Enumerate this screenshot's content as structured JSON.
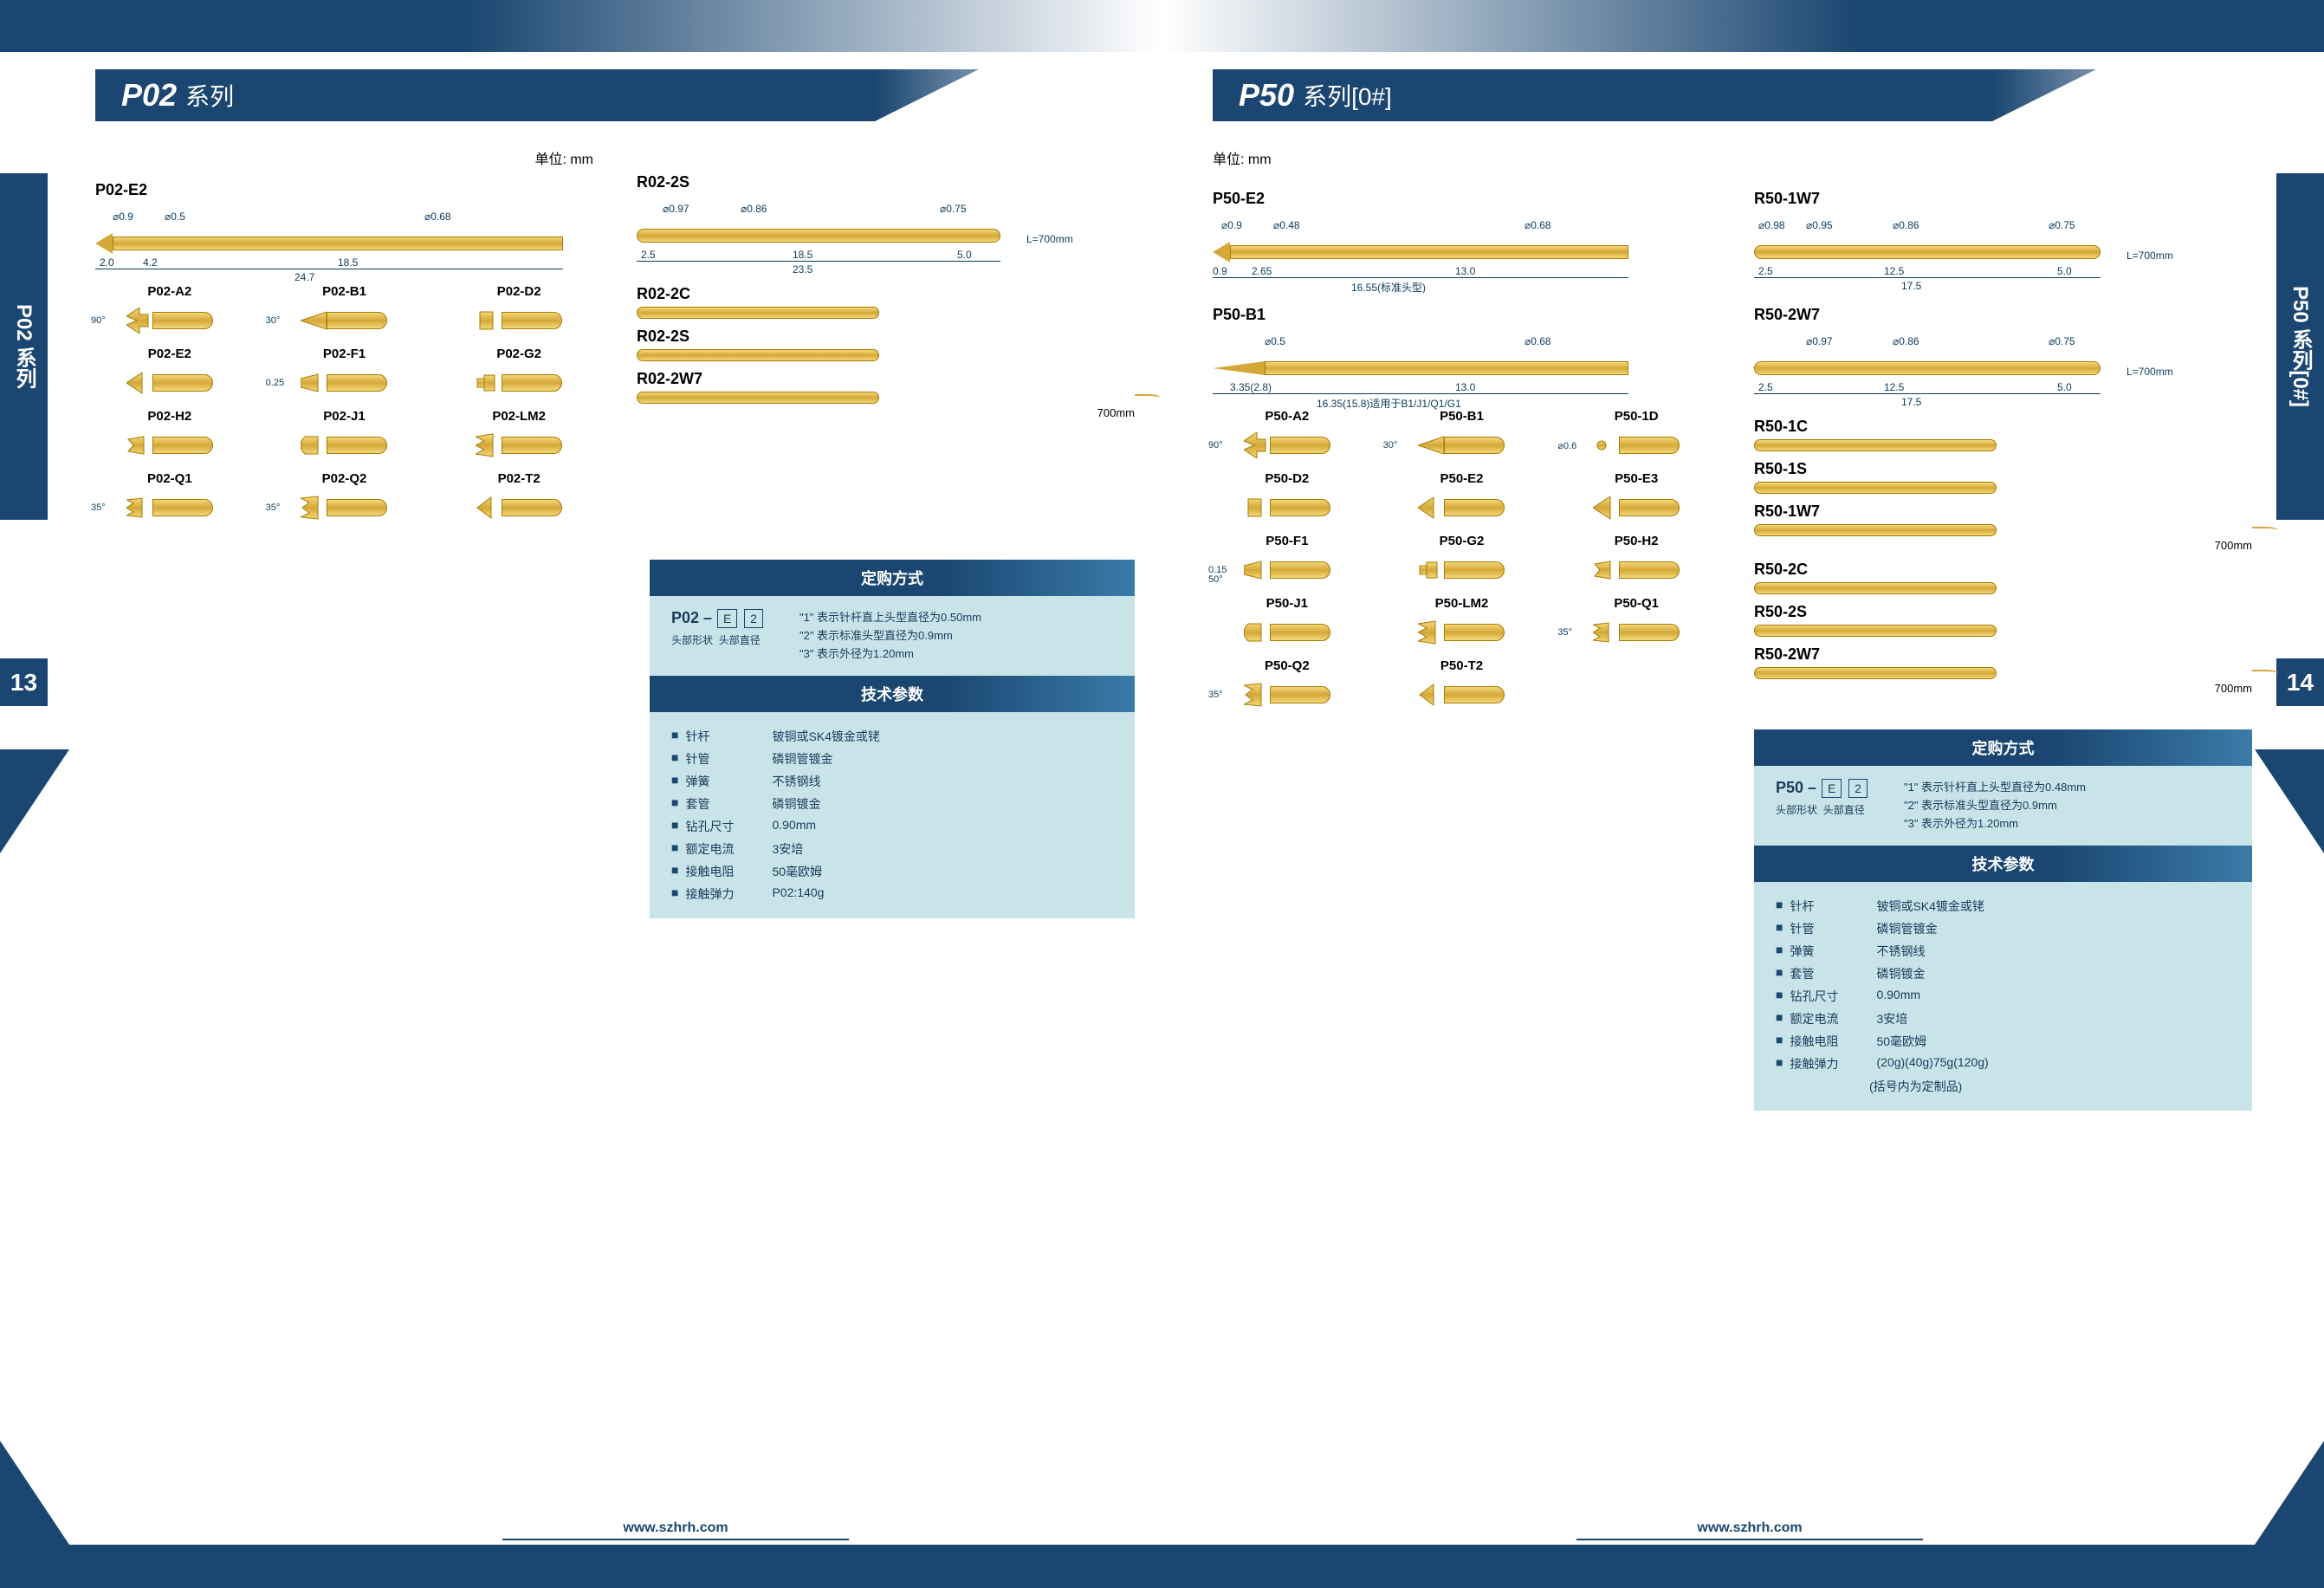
{
  "colors": {
    "brand_blue": "#1a4671",
    "panel_bg": "#c9e4e8",
    "pin_gold_light": "#f5d77a",
    "pin_gold_dark": "#d4a838",
    "pin_border": "#a67c00",
    "dim_color": "#0a3a5c"
  },
  "typography": {
    "title_size": 36,
    "label_size": 18,
    "dim_size": 12,
    "spec_size": 14
  },
  "footer_url": "www.szhrh.com",
  "unit_label": "单位:  mm",
  "page_left": {
    "number": "13",
    "side_tab": "P02 系列",
    "title_main": "P02",
    "title_sub": "系列",
    "main_pin": {
      "label": "P02-E2",
      "dims_top": [
        "⌀0.9",
        "⌀0.5",
        "⌀0.68"
      ],
      "dims_bottom": [
        "2.0",
        "4.2",
        "18.5"
      ],
      "total": "24.7"
    },
    "sleeve_main": {
      "label": "R02-2S",
      "dims_top": [
        "⌀0.97",
        "⌀0.86",
        "⌀0.75"
      ],
      "dims_bottom": [
        "2.5",
        "18.5",
        "5.0"
      ],
      "total": "23.5",
      "wire": "L=700mm"
    },
    "tips": [
      {
        "label": "P02-A2",
        "angle": "90°",
        "type": "vcut"
      },
      {
        "label": "P02-B1",
        "angle": "30°",
        "type": "point"
      },
      {
        "label": "P02-D2",
        "type": "flat"
      },
      {
        "label": "P02-E2",
        "type": "cone"
      },
      {
        "label": "P02-F1",
        "angle": "0.25",
        "type": "chisel"
      },
      {
        "label": "P02-G2",
        "type": "step"
      },
      {
        "label": "P02-H2",
        "type": "crown"
      },
      {
        "label": "P02-J1",
        "type": "dome"
      },
      {
        "label": "P02-LM2",
        "type": "multi"
      },
      {
        "label": "P02-Q1",
        "angle": "35°",
        "type": "serrated"
      },
      {
        "label": "P02-Q2",
        "angle": "35°",
        "type": "serrated2"
      },
      {
        "label": "P02-T2",
        "type": "bevel"
      }
    ],
    "sleeves": [
      {
        "label": "R02-2C"
      },
      {
        "label": "R02-2S"
      },
      {
        "label": "R02-2W7",
        "len": "700mm"
      }
    ],
    "order": {
      "header": "定购方式",
      "code_prefix": "P02 –",
      "code_e": "E",
      "code_2": "2",
      "sub1": "头部形状",
      "sub2": "头部直径",
      "notes": [
        "\"1\" 表示针杆直上头型直径为0.50mm",
        "\"2\" 表示标准头型直径为0.9mm",
        "\"3\" 表示外径为1.20mm"
      ]
    },
    "specs": {
      "header": "技术参数",
      "rows": [
        {
          "label": "针杆",
          "value": "铍铜或SK4镀金或铑"
        },
        {
          "label": "针管",
          "value": "磷铜管镀金"
        },
        {
          "label": "弹簧",
          "value": "不锈钢线"
        },
        {
          "label": "套管",
          "value": "磷铜镀金"
        },
        {
          "label": "钻孔尺寸",
          "value": "0.90mm"
        },
        {
          "label": "额定电流",
          "value": "3安培"
        },
        {
          "label": "接触电阻",
          "value": "50毫欧姆"
        },
        {
          "label": "接触弹力",
          "value": "P02:140g"
        }
      ]
    }
  },
  "page_right": {
    "number": "14",
    "side_tab": "P50 系列[0#]",
    "title_main": "P50",
    "title_sub": "系列[0#]",
    "main_pin": {
      "label": "P50-E2",
      "dims_top": [
        "⌀0.9",
        "⌀0.48",
        "⌀0.68"
      ],
      "dims_bottom": [
        "0.9",
        "2.65",
        "13.0"
      ],
      "total": "16.55(标准头型)"
    },
    "pin_b1": {
      "label": "P50-B1",
      "dims_top": [
        "⌀0.5",
        "⌀0.68"
      ],
      "dims_bottom": [
        "3.35(2.8)",
        "13.0"
      ],
      "total": "16.35(15.8)适用于B1/J1/Q1/G1"
    },
    "sleeve_main": {
      "label": "R50-1W7",
      "dims_top": [
        "⌀0.98",
        "⌀0.95",
        "⌀0.86",
        "⌀0.75"
      ],
      "dims_bottom": [
        "2.5",
        "12.5",
        "5.0"
      ],
      "total": "17.5",
      "wire": "L=700mm"
    },
    "sleeve_2w7": {
      "label": "R50-2W7",
      "dims_top": [
        "⌀0.97",
        "⌀0.86",
        "⌀0.75"
      ],
      "dims_bottom": [
        "2.5",
        "12.5",
        "5.0"
      ],
      "total": "17.5",
      "wire": "L=700mm"
    },
    "tips": [
      {
        "label": "P50-A2",
        "angle": "90°",
        "type": "vcut"
      },
      {
        "label": "P50-B1",
        "angle": "30°",
        "type": "point"
      },
      {
        "label": "P50-1D",
        "angle": "⌀0.6",
        "type": "dot"
      },
      {
        "label": "P50-D2",
        "type": "flat"
      },
      {
        "label": "P50-E2",
        "type": "cone"
      },
      {
        "label": "P50-E3",
        "type": "cone2"
      },
      {
        "label": "P50-F1",
        "angle": "0.15",
        "angle2": "50°",
        "type": "chisel"
      },
      {
        "label": "P50-G2",
        "type": "step"
      },
      {
        "label": "P50-H2",
        "type": "crown"
      },
      {
        "label": "P50-J1",
        "type": "dome"
      },
      {
        "label": "P50-LM2",
        "type": "multi"
      },
      {
        "label": "P50-Q1",
        "angle": "35°",
        "type": "serrated"
      },
      {
        "label": "P50-Q2",
        "angle": "35°",
        "type": "serrated2"
      },
      {
        "label": "P50-T2",
        "type": "bevel"
      }
    ],
    "sleeves": [
      {
        "label": "R50-1C"
      },
      {
        "label": "R50-1S"
      },
      {
        "label": "R50-1W7",
        "len": "700mm"
      },
      {
        "label": "R50-2C"
      },
      {
        "label": "R50-2S"
      },
      {
        "label": "R50-2W7",
        "len": "700mm"
      }
    ],
    "order": {
      "header": "定购方式",
      "code_prefix": "P50 –",
      "code_e": "E",
      "code_2": "2",
      "sub1": "头部形状",
      "sub2": "头部直径",
      "notes": [
        "\"1\" 表示针杆直上头型直径为0.48mm",
        "\"2\" 表示标准头型直径为0.9mm",
        "\"3\" 表示外径为1.20mm"
      ]
    },
    "specs": {
      "header": "技术参数",
      "rows": [
        {
          "label": "针杆",
          "value": "铍铜或SK4镀金或铑"
        },
        {
          "label": "针管",
          "value": "磷铜管镀金"
        },
        {
          "label": "弹簧",
          "value": "不锈钢线"
        },
        {
          "label": "套管",
          "value": "磷铜镀金"
        },
        {
          "label": "钻孔尺寸",
          "value": "0.90mm"
        },
        {
          "label": "额定电流",
          "value": "3安培"
        },
        {
          "label": "接触电阻",
          "value": "50毫欧姆"
        },
        {
          "label": "接触弹力",
          "value": "(20g)(40g)75g(120g)"
        },
        {
          "label": "",
          "value": "(括号内为定制品)"
        }
      ]
    }
  }
}
